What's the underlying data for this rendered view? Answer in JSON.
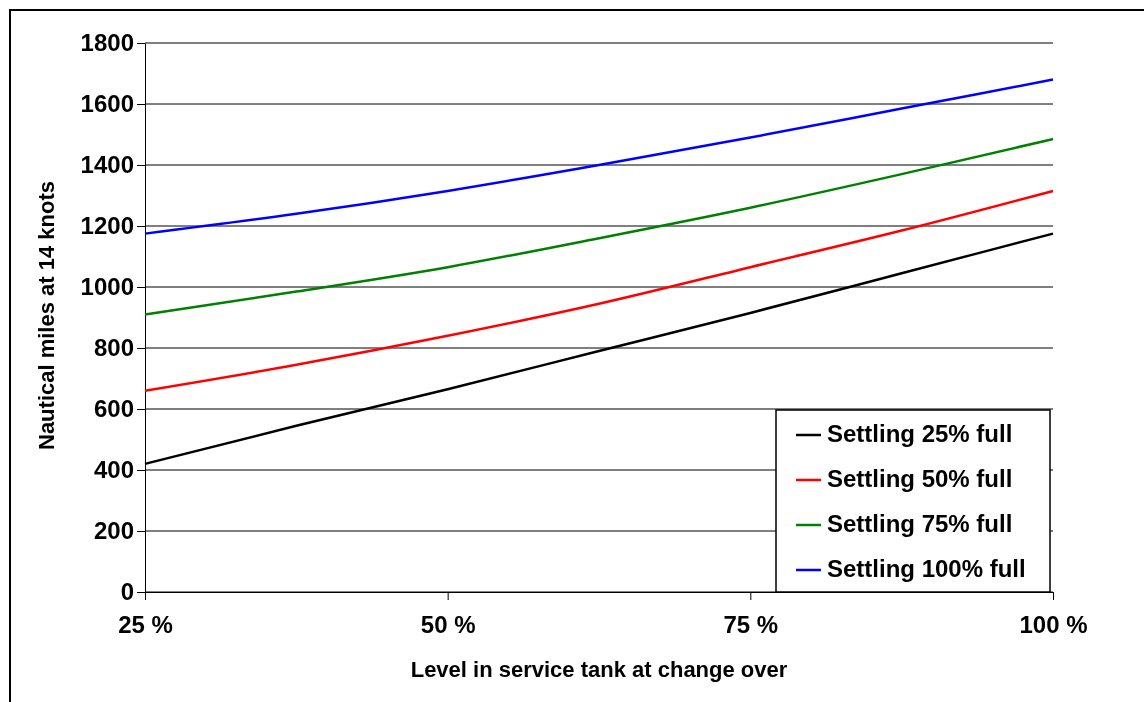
{
  "chart_data": {
    "type": "line",
    "xlabel": "Level in service tank at change over",
    "ylabel": "Nautical miles at 14 knots",
    "x": [
      25,
      37.5,
      50,
      62.5,
      75,
      87.5,
      100
    ],
    "xlim": [
      25,
      100
    ],
    "xticks": [
      {
        "value": 25,
        "label": "25 %"
      },
      {
        "value": 50,
        "label": "50 %"
      },
      {
        "value": 75,
        "label": "75 %"
      },
      {
        "value": 100,
        "label": "100 %"
      }
    ],
    "ylim": [
      0,
      1800
    ],
    "yticks": [
      0,
      200,
      400,
      600,
      800,
      1000,
      1200,
      1400,
      1600,
      1800
    ],
    "grid": "y",
    "legend": "bottom right",
    "marker": "none",
    "line_style": "solid",
    "series": [
      {
        "name": "Settling 25% full",
        "color": "#000000",
        "values": [
          420,
          545,
          665,
          790,
          915,
          1045,
          1175
        ]
      },
      {
        "name": "Settling 50% full",
        "color": "#ff0000",
        "values": [
          660,
          745,
          840,
          945,
          1065,
          1185,
          1315
        ]
      },
      {
        "name": "Settling 75% full",
        "color": "#008000",
        "values": [
          910,
          985,
          1065,
          1160,
          1260,
          1370,
          1485
        ]
      },
      {
        "name": "Settling 100% full",
        "color": "#0000ff",
        "values": [
          1175,
          1240,
          1315,
          1400,
          1490,
          1585,
          1680
        ]
      }
    ]
  }
}
